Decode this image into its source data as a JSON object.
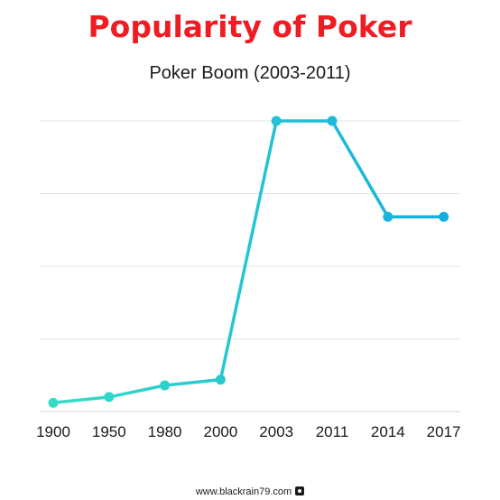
{
  "page": {
    "title": "Popularity of Poker",
    "subtitle": "Poker Boom (2003-2011)",
    "footer_text": "www.blackrain79.com"
  },
  "colors": {
    "title": "#ee1d23",
    "line_start": "#35ddc5",
    "line_end": "#14aee0",
    "grid": "#e3e3e3"
  },
  "icons": {
    "footer": "camera-icon"
  },
  "chart_data": {
    "type": "line",
    "title": "Popularity of Poker",
    "subtitle": "Poker Boom (2003-2011)",
    "xlabel": "",
    "ylabel": "",
    "categories": [
      "1900",
      "1950",
      "1980",
      "2000",
      "2003",
      "2011",
      "2014",
      "2017"
    ],
    "values": [
      3,
      5,
      9,
      11,
      100,
      100,
      67,
      67
    ],
    "ylim": [
      0,
      100
    ],
    "grid": true,
    "legend": "none"
  }
}
